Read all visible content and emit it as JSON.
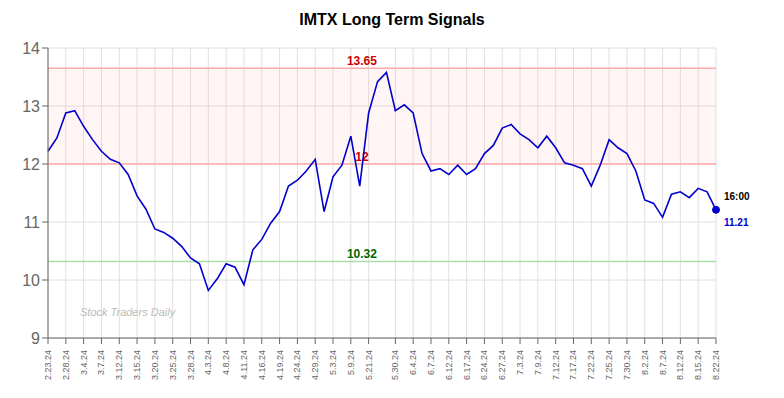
{
  "chart_data": {
    "type": "line",
    "title": "IMTX Long Term Signals",
    "categories": [
      "2.23.24",
      null,
      "2.28.24",
      null,
      "3.4.24",
      null,
      "3.7.24",
      null,
      "3.12.24",
      null,
      "3.15.24",
      null,
      "3.20.24",
      null,
      "3.25.24",
      null,
      "3.28.24",
      null,
      "4.3.24",
      null,
      "4.8.24",
      null,
      "4.11.24",
      null,
      "4.16.24",
      null,
      "4.19.24",
      null,
      "4.24.24",
      null,
      "4.29.24",
      null,
      "5.3.24",
      null,
      "5.9.24",
      null,
      "5.21.24",
      null,
      null,
      "5.30.24",
      null,
      "6.4.24",
      null,
      "6.7.24",
      null,
      "6.12.24",
      null,
      "6.17.24",
      null,
      "6.24.24",
      null,
      "6.27.24",
      null,
      "7.3.24",
      null,
      "7.9.24",
      null,
      "7.12.24",
      null,
      "7.17.24",
      null,
      "7.22.24",
      null,
      "7.25.24",
      null,
      "7.30.24",
      null,
      "8.2.24",
      null,
      "8.7.24",
      null,
      "8.12.24",
      null,
      "8.15.24",
      null,
      "8.22.24"
    ],
    "values": [
      12.22,
      12.45,
      12.88,
      12.92,
      12.65,
      12.42,
      12.22,
      12.08,
      12.02,
      11.82,
      11.45,
      11.22,
      10.88,
      10.82,
      10.72,
      10.58,
      10.38,
      10.28,
      9.82,
      10.02,
      10.28,
      10.22,
      9.92,
      10.52,
      10.7,
      10.98,
      11.18,
      11.62,
      11.72,
      11.88,
      12.08,
      11.18,
      11.78,
      11.98,
      12.48,
      11.62,
      12.88,
      13.42,
      13.58,
      12.92,
      13.02,
      12.88,
      12.18,
      11.88,
      11.92,
      11.82,
      11.98,
      11.82,
      11.92,
      12.18,
      12.32,
      12.62,
      12.68,
      12.52,
      12.42,
      12.28,
      12.48,
      12.28,
      12.02,
      11.98,
      11.92,
      11.62,
      11.98,
      12.42,
      12.28,
      12.18,
      11.88,
      11.38,
      11.32,
      11.08,
      11.48,
      11.52,
      11.42,
      11.58,
      11.52,
      11.21
    ],
    "color": "#0000cc",
    "ylim": [
      9,
      14
    ],
    "yticks": [
      9,
      10,
      11,
      12,
      13,
      14
    ],
    "grid": true,
    "band": {
      "from": 12.0,
      "to": 13.65,
      "color": "#ffaaaa"
    },
    "reference_lines": [
      {
        "y": 13.65,
        "label": "13.65",
        "color": "#ffaaaa",
        "label_color": "#cc0000"
      },
      {
        "y": 12.0,
        "label": "12",
        "color": "#ffaaaa",
        "label_color": "#cc0000"
      },
      {
        "y": 10.32,
        "label": "10.32",
        "color": "#aaddaa",
        "label_color": "#006600"
      }
    ],
    "last_point": {
      "label": "16:00",
      "value": 11.21
    },
    "watermark": {
      "text": "Stock Traders Daily",
      "color": "#bbbbbb"
    }
  }
}
